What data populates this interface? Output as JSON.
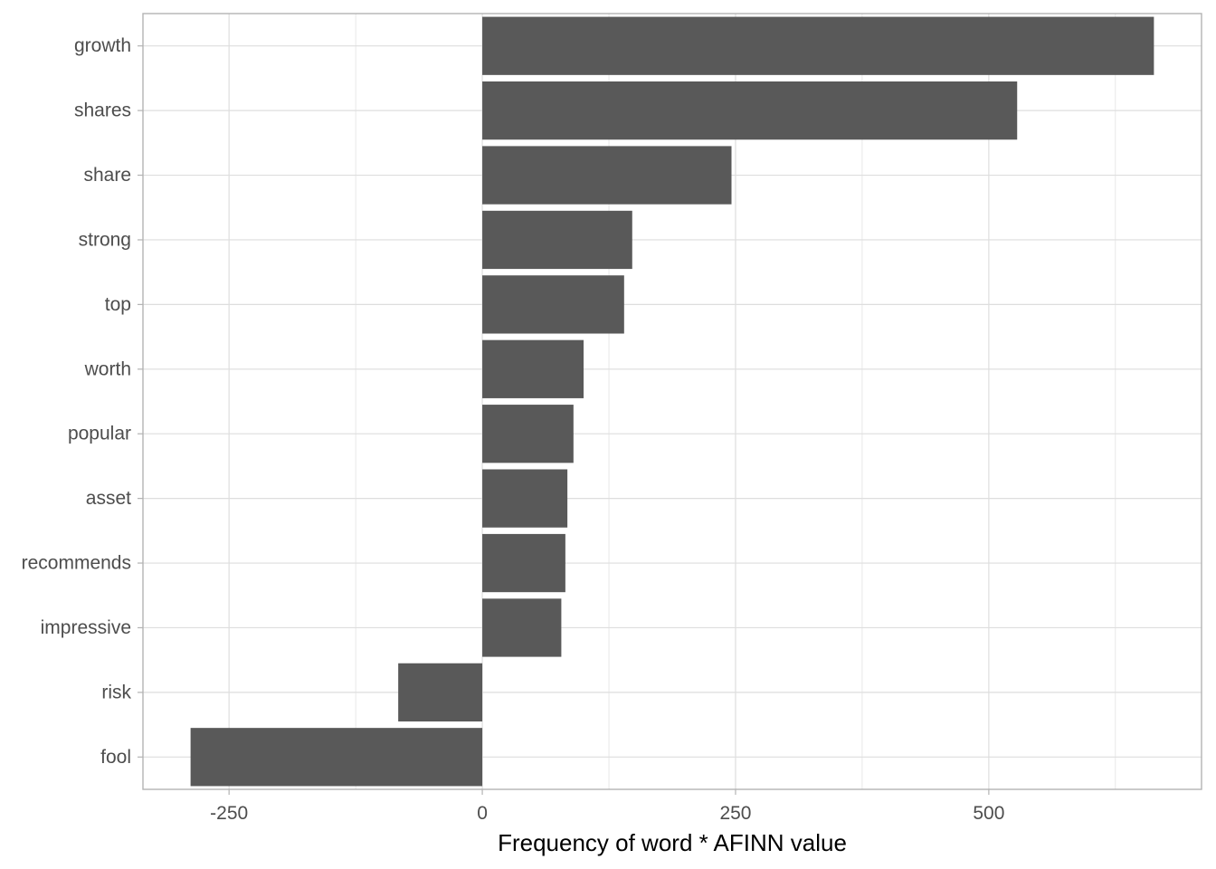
{
  "chart_data": {
    "type": "bar",
    "orientation": "horizontal",
    "categories": [
      "growth",
      "shares",
      "share",
      "strong",
      "top",
      "worth",
      "popular",
      "asset",
      "recommends",
      "impressive",
      "risk",
      "fool"
    ],
    "values": [
      663,
      528,
      246,
      148,
      140,
      100,
      90,
      84,
      82,
      78,
      -83,
      -288
    ],
    "xlabel": "Frequency of word * AFINN value",
    "ylabel": "",
    "xlim": [
      -335,
      710
    ],
    "xticks": [
      -250,
      0,
      250,
      500
    ],
    "xtick_labels": [
      "-250",
      "0",
      "250",
      "500"
    ],
    "grid": true,
    "bar_color": "#595959",
    "grid_color": "#dedede",
    "panel_border_color": "#b3b3b3"
  }
}
